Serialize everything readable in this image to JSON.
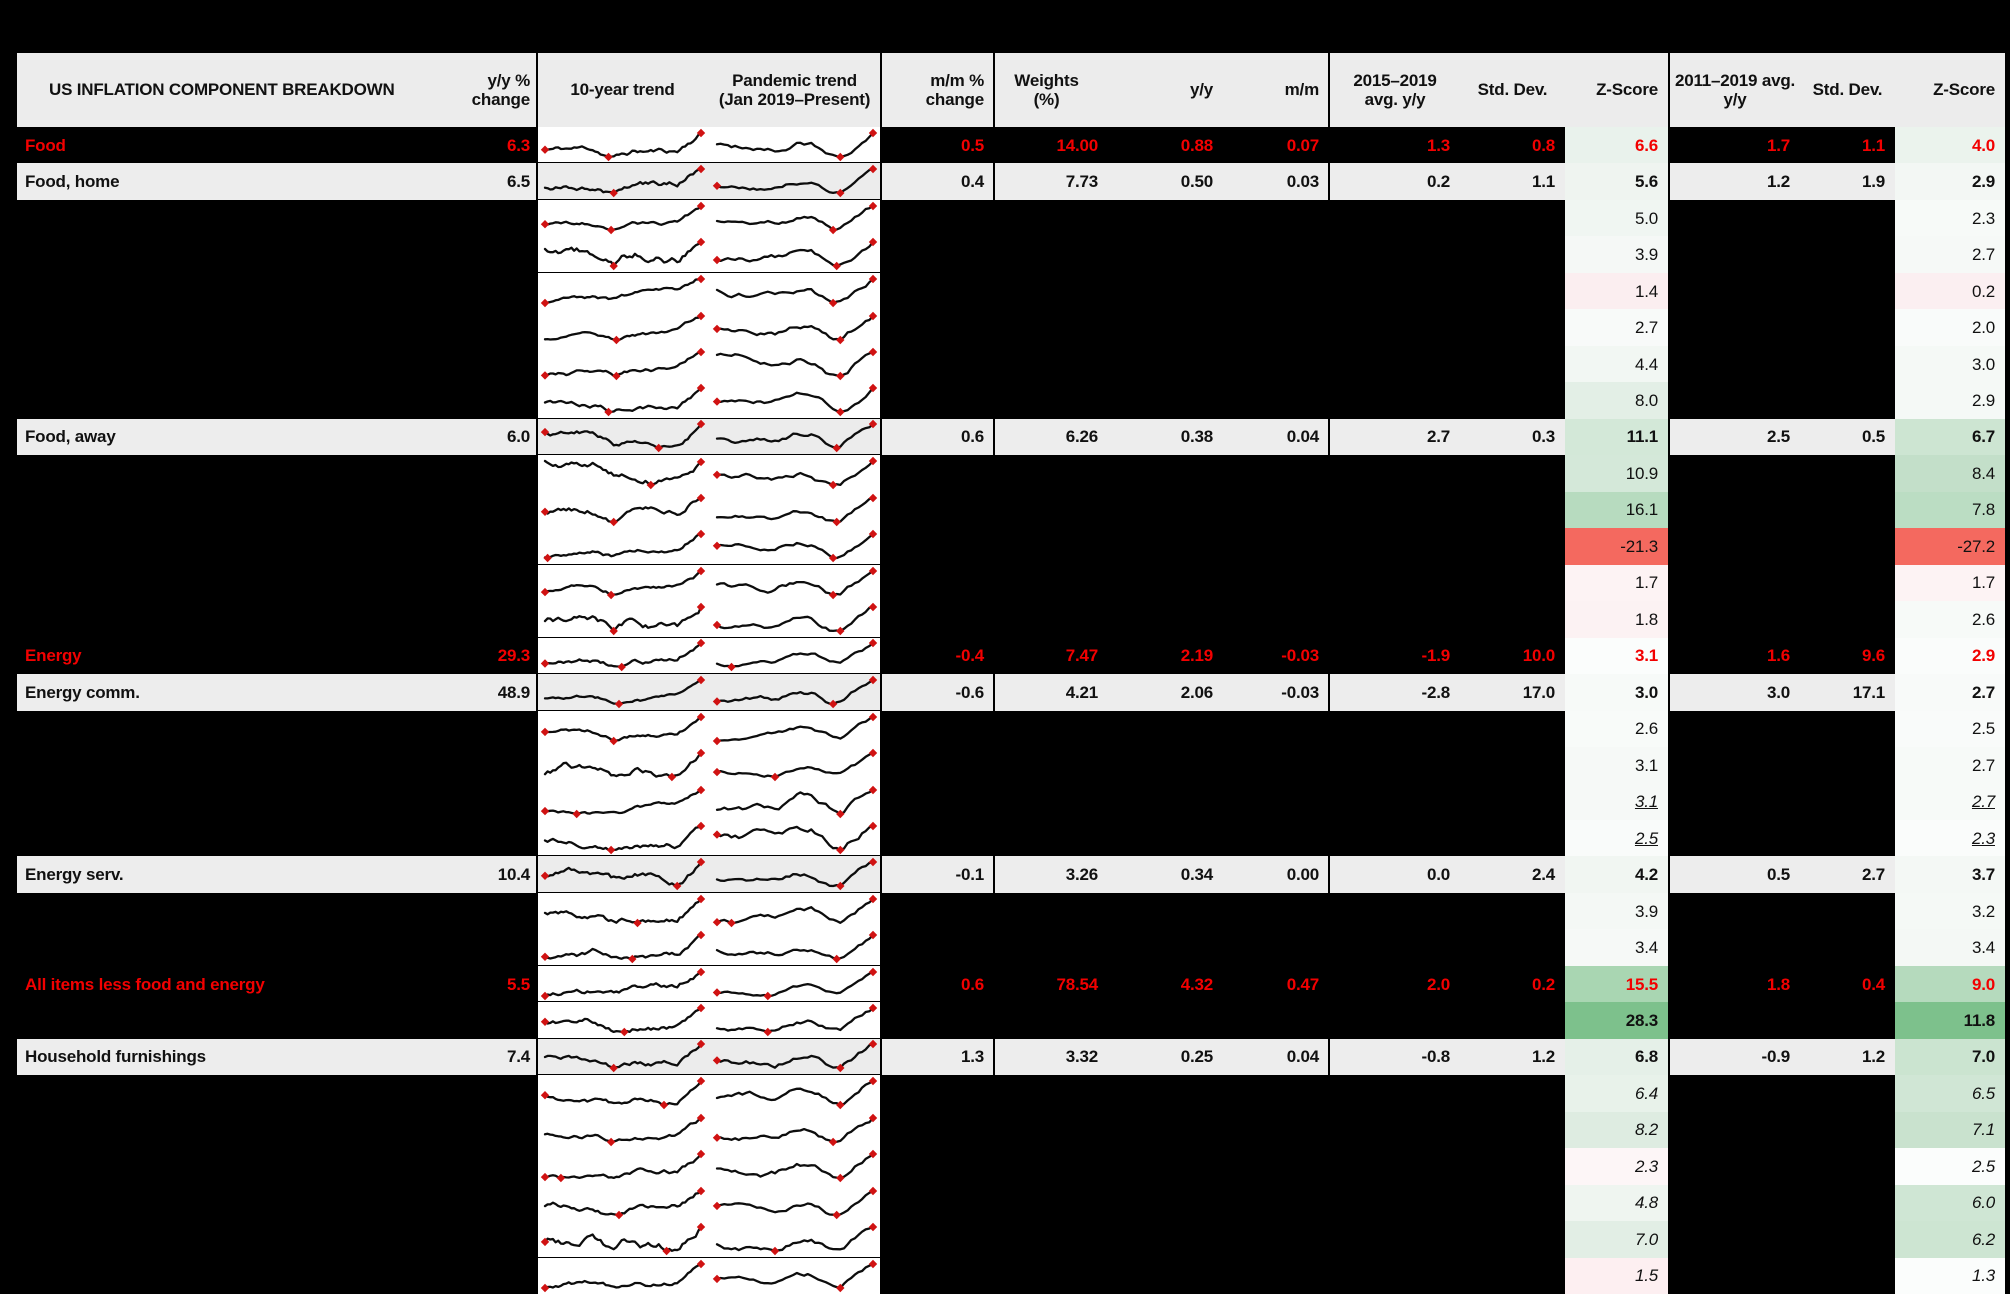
{
  "colors": {
    "page_bg": "#000000",
    "row_grey": "#ededed",
    "header_grey": "#ececec",
    "red": "#f20000",
    "salmon": "#f4695f",
    "spark_line": "#0d0d0d",
    "marker_red": "#d01212"
  },
  "header": {
    "title": "US INFLATION COMPONENT BREAKDOWN",
    "yy": "y/y %\nchange",
    "trend10": "10-year trend",
    "pandemic": "Pandemic trend\n(Jan 2019–Present)",
    "mm": "m/m %\nchange",
    "weights": "Weights\n(%)",
    "yoy": "y/y",
    "mom": "m/m",
    "avg1": "2015–2019\navg. y/y",
    "std1": "Std. Dev.",
    "z1": "Z-Score",
    "avg2": "2011–2019 avg.\ny/y",
    "std2": "Std. Dev.",
    "z2": "Z-Score"
  },
  "rows": [
    {
      "type": "agg",
      "label": "Food",
      "yy": "6.3",
      "mm": "0.5",
      "w": "14.00",
      "yoy": "0.88",
      "mom": "0.07",
      "a1": "1.3",
      "s1": "0.8",
      "z1": "6.6",
      "a2": "1.7",
      "s2": "1.1",
      "z2": "4.0",
      "z1bg": "#e9f2ec",
      "z2bg": "#ebf3ed",
      "zstyle": "n",
      "zbold": true,
      "sborder": true
    },
    {
      "type": "sub",
      "label": "Food, home",
      "yy": "6.5",
      "mm": "0.4",
      "w": "7.73",
      "yoy": "0.50",
      "mom": "0.03",
      "a1": "0.2",
      "s1": "1.1",
      "z1": "5.6",
      "a2": "1.2",
      "s2": "1.9",
      "z2": "2.9",
      "z1bg": "#eff4f0",
      "z2bg": "#f3f7f4",
      "zstyle": "n",
      "zbold": true,
      "sborder": true
    },
    {
      "type": "hidden",
      "z1": "5.0",
      "z2": "2.3",
      "z1bg": "#f0f6f2",
      "z2bg": "#f7faf8",
      "zstyle": "n",
      "zbold": false,
      "sborder": false
    },
    {
      "type": "hidden",
      "z1": "3.9",
      "z2": "2.7",
      "z1bg": "#f5f8f6",
      "z2bg": "#f6f9f7",
      "zstyle": "n",
      "zbold": false,
      "sborder": true
    },
    {
      "type": "hidden",
      "z1": "1.4",
      "z2": "0.2",
      "z1bg": "#fbeef0",
      "z2bg": "#fbeff1",
      "zstyle": "n",
      "zbold": false,
      "sborder": false
    },
    {
      "type": "hidden",
      "z1": "2.7",
      "z2": "2.0",
      "z1bg": "#f8faf9",
      "z2bg": "#f9fbfa",
      "zstyle": "n",
      "zbold": false,
      "sborder": false
    },
    {
      "type": "hidden",
      "z1": "4.4",
      "z2": "3.0",
      "z1bg": "#f2f7f3",
      "z2bg": "#f5f9f6",
      "zstyle": "n",
      "zbold": false,
      "sborder": false
    },
    {
      "type": "hidden",
      "z1": "8.0",
      "z2": "2.9",
      "z1bg": "#e3efe6",
      "z2bg": "#f5f9f6",
      "zstyle": "n",
      "zbold": false,
      "sborder": true
    },
    {
      "type": "sub",
      "label": "Food, away",
      "yy": "6.0",
      "mm": "0.6",
      "w": "6.26",
      "yoy": "0.38",
      "mom": "0.04",
      "a1": "2.7",
      "s1": "0.3",
      "z1": "11.1",
      "a2": "2.5",
      "s2": "0.5",
      "z2": "6.7",
      "z1bg": "#d3e8d8",
      "z2bg": "#cde5d2",
      "zstyle": "n",
      "zbold": true,
      "sborder": true
    },
    {
      "type": "hidden",
      "z1": "10.9",
      "z2": "8.4",
      "z1bg": "#d4e8d9",
      "z2bg": "#c3dfc9",
      "zstyle": "n",
      "zbold": false,
      "sborder": false
    },
    {
      "type": "hidden",
      "z1": "16.1",
      "z2": "7.8",
      "z1bg": "#b7dbbf",
      "z2bg": "#bbddc3",
      "zstyle": "n",
      "zbold": false,
      "sborder": false
    },
    {
      "type": "hidden",
      "z1": "-21.3",
      "z2": "-27.2",
      "z1bg": "#f4695f",
      "z2bg": "#f4695f",
      "zstyle": "n",
      "zbold": false,
      "sborder": true
    },
    {
      "type": "hidden",
      "z1": "1.7",
      "z2": "1.7",
      "z1bg": "#fdf3f4",
      "z2bg": "#fdf3f4",
      "zstyle": "n",
      "zbold": false,
      "sborder": false
    },
    {
      "type": "hidden",
      "z1": "1.8",
      "z2": "2.6",
      "z1bg": "#fcf2f3",
      "z2bg": "#f7faf8",
      "zstyle": "n",
      "zbold": false,
      "sborder": true
    },
    {
      "type": "agg",
      "label": "Energy",
      "yy": "29.3",
      "mm": "-0.4",
      "w": "7.47",
      "yoy": "2.19",
      "mom": "-0.03",
      "a1": "-1.9",
      "s1": "10.0",
      "z1": "3.1",
      "a2": "1.6",
      "s2": "9.6",
      "z2": "2.9",
      "z1bg": "#fbfdfc",
      "z2bg": "#fafcfb",
      "zstyle": "n",
      "zbold": true,
      "sborder": true
    },
    {
      "type": "sub",
      "label": "Energy comm.",
      "yy": "48.9",
      "mm": "-0.6",
      "w": "4.21",
      "yoy": "2.06",
      "mom": "-0.03",
      "a1": "-2.8",
      "s1": "17.0",
      "z1": "3.0",
      "a2": "3.0",
      "s2": "17.1",
      "z2": "2.7",
      "z1bg": "#f7faf8",
      "z2bg": "#f8faf9",
      "zstyle": "n",
      "zbold": true,
      "sborder": true
    },
    {
      "type": "hidden",
      "z1": "2.6",
      "z2": "2.5",
      "z1bg": "#f8fbf9",
      "z2bg": "#f9fbfa",
      "zstyle": "n",
      "zbold": false,
      "sborder": false
    },
    {
      "type": "hidden",
      "z1": "3.1",
      "z2": "2.7",
      "z1bg": "#f6f9f7",
      "z2bg": "#f7faf8",
      "zstyle": "n",
      "zbold": false,
      "sborder": false
    },
    {
      "type": "hidden",
      "z1": "3.1",
      "z2": "2.7",
      "z1bg": "#f6f9f7",
      "z2bg": "#f7faf8",
      "zstyle": "iu",
      "zbold": false,
      "sborder": false
    },
    {
      "type": "hidden",
      "z1": "2.5",
      "z2": "2.3",
      "z1bg": "#f9fbfa",
      "z2bg": "#fafcfb",
      "zstyle": "iu",
      "zbold": false,
      "sborder": true
    },
    {
      "type": "sub",
      "label": "Energy serv.",
      "yy": "10.4",
      "mm": "-0.1",
      "w": "3.26",
      "yoy": "0.34",
      "mom": "0.00",
      "a1": "0.0",
      "s1": "2.4",
      "z1": "4.2",
      "a2": "0.5",
      "s2": "2.7",
      "z2": "3.7",
      "z1bg": "#f1f6f2",
      "z2bg": "#f4f8f5",
      "zstyle": "n",
      "zbold": true,
      "sborder": true
    },
    {
      "type": "hidden",
      "z1": "3.9",
      "z2": "3.2",
      "z1bg": "#f4f8f5",
      "z2bg": "#f5f9f6",
      "zstyle": "n",
      "zbold": false,
      "sborder": false
    },
    {
      "type": "hidden",
      "z1": "3.4",
      "z2": "3.4",
      "z1bg": "#f6f9f7",
      "z2bg": "#f4f8f5",
      "zstyle": "n",
      "zbold": false,
      "sborder": true
    },
    {
      "type": "agg",
      "label": "All items less food and energy",
      "yy": "5.5",
      "mm": "0.6",
      "w": "78.54",
      "yoy": "4.32",
      "mom": "0.47",
      "a1": "2.0",
      "s1": "0.2",
      "z1": "15.5",
      "a2": "1.8",
      "s2": "0.4",
      "z2": "9.0",
      "z1bg": "#a9d6b2",
      "z2bg": "#b5dabd",
      "zstyle": "n",
      "zbold": true,
      "sborder": true
    },
    {
      "type": "hidden",
      "z1": "28.3",
      "z2": "11.8",
      "z1bg": "#7dc18c",
      "z2bg": "#7dc18c",
      "zstyle": "n",
      "zbold": true,
      "sborder": true
    },
    {
      "type": "sub",
      "label": "Household furnishings",
      "yy": "7.4",
      "mm": "1.3",
      "w": "3.32",
      "yoy": "0.25",
      "mom": "0.04",
      "a1": "-0.8",
      "s1": "1.2",
      "z1": "6.8",
      "a2": "-0.9",
      "s2": "1.2",
      "z2": "7.0",
      "z1bg": "#e5f0e8",
      "z2bg": "#cbe4d0",
      "zstyle": "n",
      "zbold": true,
      "sborder": true
    },
    {
      "type": "hidden",
      "z1": "6.4",
      "z2": "6.5",
      "z1bg": "#e8f2ea",
      "z2bg": "#d0e6d5",
      "zstyle": "i",
      "zbold": false,
      "sborder": false
    },
    {
      "type": "hidden",
      "z1": "8.2",
      "z2": "7.1",
      "z1bg": "#deece1",
      "z2bg": "#c9e2ce",
      "zstyle": "i",
      "zbold": false,
      "sborder": false
    },
    {
      "type": "hidden",
      "z1": "2.3",
      "z2": "2.5",
      "z1bg": "#fdf6f7",
      "z2bg": "#fbfdfc",
      "zstyle": "i",
      "zbold": false,
      "sborder": false
    },
    {
      "type": "hidden",
      "z1": "4.8",
      "z2": "6.0",
      "z1bg": "#eff5f0",
      "z2bg": "#cfe6d4",
      "zstyle": "i",
      "zbold": false,
      "sborder": false
    },
    {
      "type": "hidden",
      "z1": "7.0",
      "z2": "6.2",
      "z1bg": "#e2eee5",
      "z2bg": "#cde5d2",
      "zstyle": "i",
      "zbold": false,
      "sborder": true
    },
    {
      "type": "hidden",
      "z1": "1.5",
      "z2": "1.3",
      "z1bg": "#fdeff1",
      "z2bg": "#fbfdfc",
      "zstyle": "i",
      "zbold": false,
      "sborder": false
    }
  ],
  "chart_data": {
    "type": "table",
    "title": "US INFLATION COMPONENT BREAKDOWN",
    "columns": [
      "Component",
      "y/y % change",
      "m/m % change",
      "Weights (%)",
      "y/y",
      "m/m",
      "2015–2019 avg. y/y",
      "Std. Dev. (2015–2019)",
      "Z-Score (2015–2019)",
      "2011–2019 avg. y/y",
      "Std. Dev. (2011–2019)",
      "Z-Score (2011–2019)"
    ],
    "rows": [
      [
        "Food",
        6.3,
        0.5,
        14.0,
        0.88,
        0.07,
        1.3,
        0.8,
        6.6,
        1.7,
        1.1,
        4.0
      ],
      [
        "Food, home",
        6.5,
        0.4,
        7.73,
        0.5,
        0.03,
        0.2,
        1.1,
        5.6,
        1.2,
        1.9,
        2.9
      ],
      [
        null,
        null,
        null,
        null,
        null,
        null,
        null,
        null,
        5.0,
        null,
        null,
        2.3
      ],
      [
        null,
        null,
        null,
        null,
        null,
        null,
        null,
        null,
        3.9,
        null,
        null,
        2.7
      ],
      [
        null,
        null,
        null,
        null,
        null,
        null,
        null,
        null,
        1.4,
        null,
        null,
        0.2
      ],
      [
        null,
        null,
        null,
        null,
        null,
        null,
        null,
        null,
        2.7,
        null,
        null,
        2.0
      ],
      [
        null,
        null,
        null,
        null,
        null,
        null,
        null,
        null,
        4.4,
        null,
        null,
        3.0
      ],
      [
        null,
        null,
        null,
        null,
        null,
        null,
        null,
        null,
        8.0,
        null,
        null,
        2.9
      ],
      [
        "Food, away",
        6.0,
        0.6,
        6.26,
        0.38,
        0.04,
        2.7,
        0.3,
        11.1,
        2.5,
        0.5,
        6.7
      ],
      [
        null,
        null,
        null,
        null,
        null,
        null,
        null,
        null,
        10.9,
        null,
        null,
        8.4
      ],
      [
        null,
        null,
        null,
        null,
        null,
        null,
        null,
        null,
        16.1,
        null,
        null,
        7.8
      ],
      [
        null,
        null,
        null,
        null,
        null,
        null,
        null,
        null,
        -21.3,
        null,
        null,
        -27.2
      ],
      [
        null,
        null,
        null,
        null,
        null,
        null,
        null,
        null,
        1.7,
        null,
        null,
        1.7
      ],
      [
        null,
        null,
        null,
        null,
        null,
        null,
        null,
        null,
        1.8,
        null,
        null,
        2.6
      ],
      [
        "Energy",
        29.3,
        -0.4,
        7.47,
        2.19,
        -0.03,
        -1.9,
        10.0,
        3.1,
        1.6,
        9.6,
        2.9
      ],
      [
        "Energy comm.",
        48.9,
        -0.6,
        4.21,
        2.06,
        -0.03,
        -2.8,
        17.0,
        3.0,
        3.0,
        17.1,
        2.7
      ],
      [
        null,
        null,
        null,
        null,
        null,
        null,
        null,
        null,
        2.6,
        null,
        null,
        2.5
      ],
      [
        null,
        null,
        null,
        null,
        null,
        null,
        null,
        null,
        3.1,
        null,
        null,
        2.7
      ],
      [
        null,
        null,
        null,
        null,
        null,
        null,
        null,
        null,
        3.1,
        null,
        null,
        2.7
      ],
      [
        null,
        null,
        null,
        null,
        null,
        null,
        null,
        null,
        2.5,
        null,
        null,
        2.3
      ],
      [
        "Energy serv.",
        10.4,
        -0.1,
        3.26,
        0.34,
        0.0,
        0.0,
        2.4,
        4.2,
        0.5,
        2.7,
        3.7
      ],
      [
        null,
        null,
        null,
        null,
        null,
        null,
        null,
        null,
        3.9,
        null,
        null,
        3.2
      ],
      [
        null,
        null,
        null,
        null,
        null,
        null,
        null,
        null,
        3.4,
        null,
        null,
        3.4
      ],
      [
        "All items less food and energy",
        5.5,
        0.6,
        78.54,
        4.32,
        0.47,
        2.0,
        0.2,
        15.5,
        1.8,
        0.4,
        9.0
      ],
      [
        null,
        null,
        null,
        null,
        null,
        null,
        null,
        null,
        28.3,
        null,
        null,
        11.8
      ],
      [
        "Household furnishings",
        7.4,
        1.3,
        3.32,
        0.25,
        0.04,
        -0.8,
        1.2,
        6.8,
        -0.9,
        1.2,
        7.0
      ],
      [
        null,
        null,
        null,
        null,
        null,
        null,
        null,
        null,
        6.4,
        null,
        null,
        6.5
      ],
      [
        null,
        null,
        null,
        null,
        null,
        null,
        null,
        null,
        8.2,
        null,
        null,
        7.1
      ],
      [
        null,
        null,
        null,
        null,
        null,
        null,
        null,
        null,
        2.3,
        null,
        null,
        2.5
      ],
      [
        null,
        null,
        null,
        null,
        null,
        null,
        null,
        null,
        4.8,
        null,
        null,
        6.0
      ],
      [
        null,
        null,
        null,
        null,
        null,
        null,
        null,
        null,
        7.0,
        null,
        null,
        6.2
      ],
      [
        null,
        null,
        null,
        null,
        null,
        null,
        null,
        null,
        1.5,
        null,
        null,
        1.3
      ]
    ]
  }
}
